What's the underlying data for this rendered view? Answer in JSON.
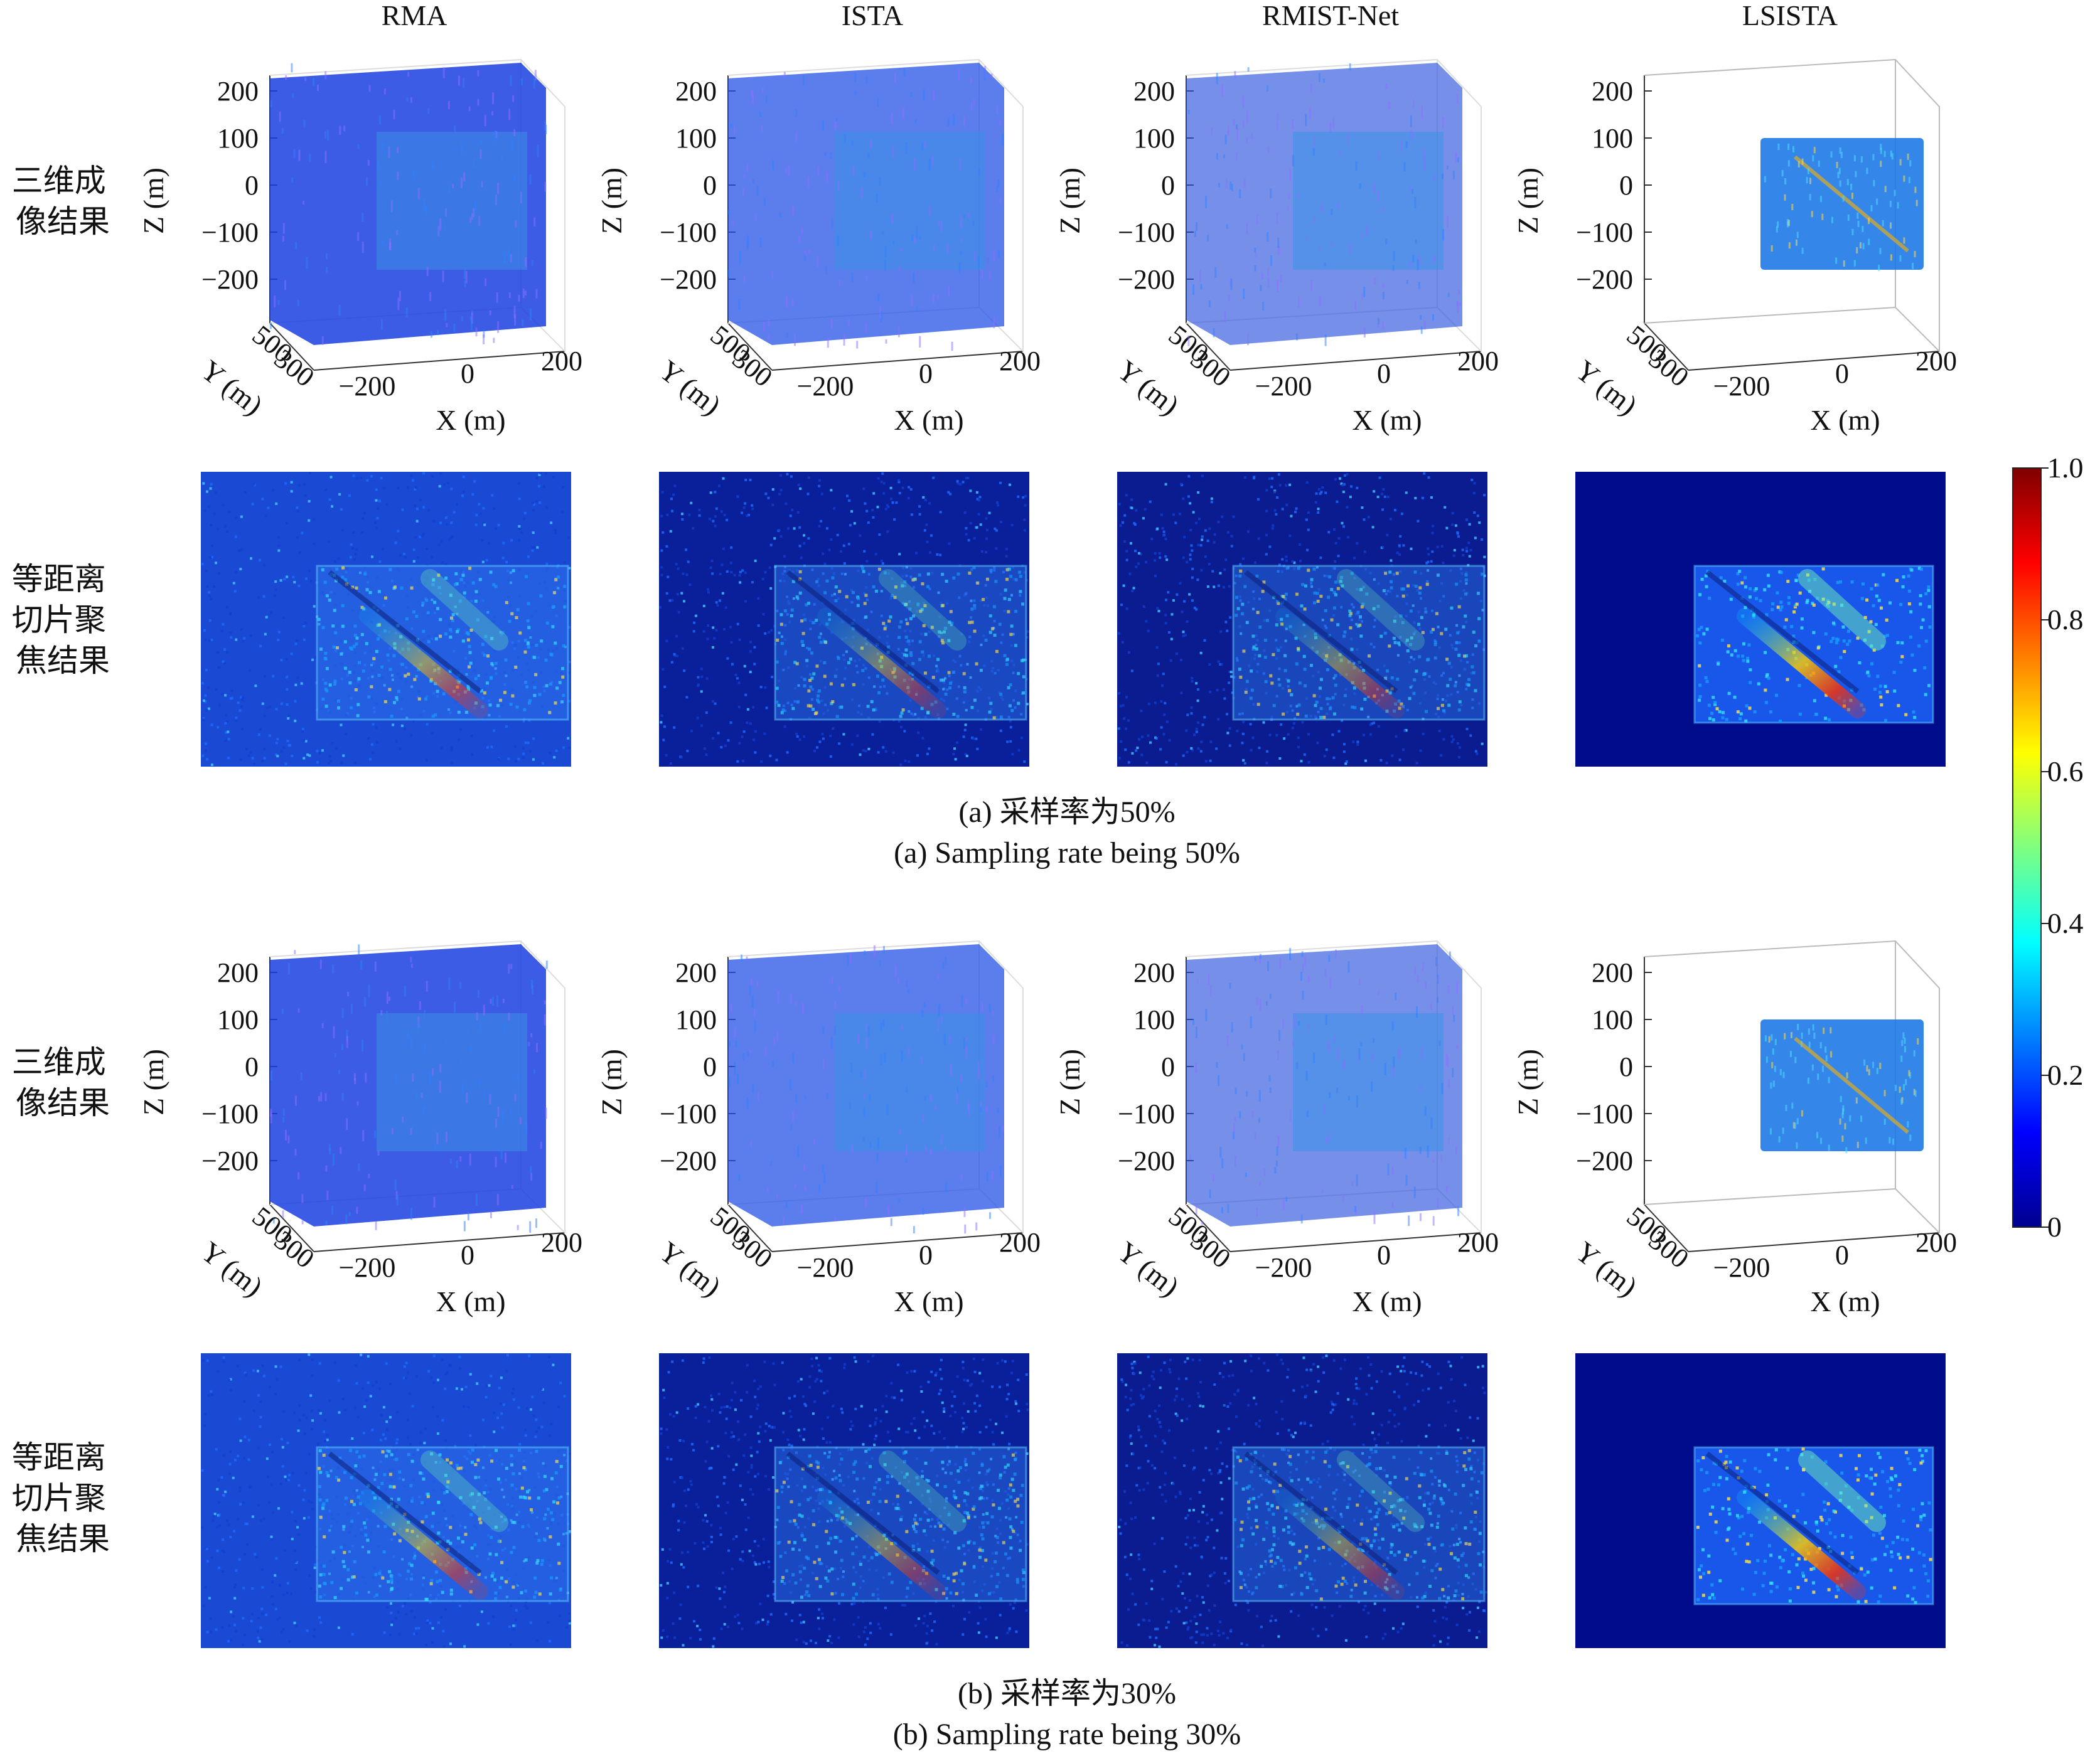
{
  "columns": [
    "RMA",
    "ISTA",
    "RMIST-Net",
    "LSISTA"
  ],
  "row_labels": {
    "volume": [
      "三维成",
      "像结果"
    ],
    "slice": [
      "等距离",
      "切片聚",
      "焦结果"
    ]
  },
  "axes": {
    "z_ticks": [
      "200",
      "100",
      "0",
      "−100",
      "−200"
    ],
    "z_label": "Z (m)",
    "y_ticks": [
      "500",
      "300"
    ],
    "y_label": "Y (m)",
    "x_ticks": [
      "−200",
      "0",
      "200"
    ],
    "x_label": "X (m)"
  },
  "captions": {
    "a_cn": "(a) 采样率为50%",
    "a_en": "(a) Sampling rate being 50%",
    "b_cn": "(b) 采样率为30%",
    "b_en": "(b) Sampling rate being 30%"
  },
  "colorbar": {
    "ticks": [
      "1.0",
      "0.8",
      "0.6",
      "0.4",
      "0.2",
      "0"
    ],
    "colors": [
      "#7f0000",
      "#ff0000",
      "#ffff00",
      "#00ffff",
      "#0000ff",
      "#00008f"
    ]
  },
  "panels": [
    {
      "cube_color": "#1b3fe0",
      "cube_alpha": 0.85,
      "hollow": false,
      "slice_bg": "#1a4ad4",
      "intensity": 0.55
    },
    {
      "cube_color": "#2552e6",
      "cube_alpha": 0.75,
      "hollow": false,
      "slice_bg": "#0a1f9a",
      "intensity": 0.45
    },
    {
      "cube_color": "#2d55de",
      "cube_alpha": 0.65,
      "hollow": false,
      "slice_bg": "#0a1c90",
      "intensity": 0.45
    },
    {
      "cube_color": "#1f6fe8",
      "cube_alpha": 0.9,
      "hollow": true,
      "slice_bg": "#000c8c",
      "intensity": 0.9
    }
  ]
}
